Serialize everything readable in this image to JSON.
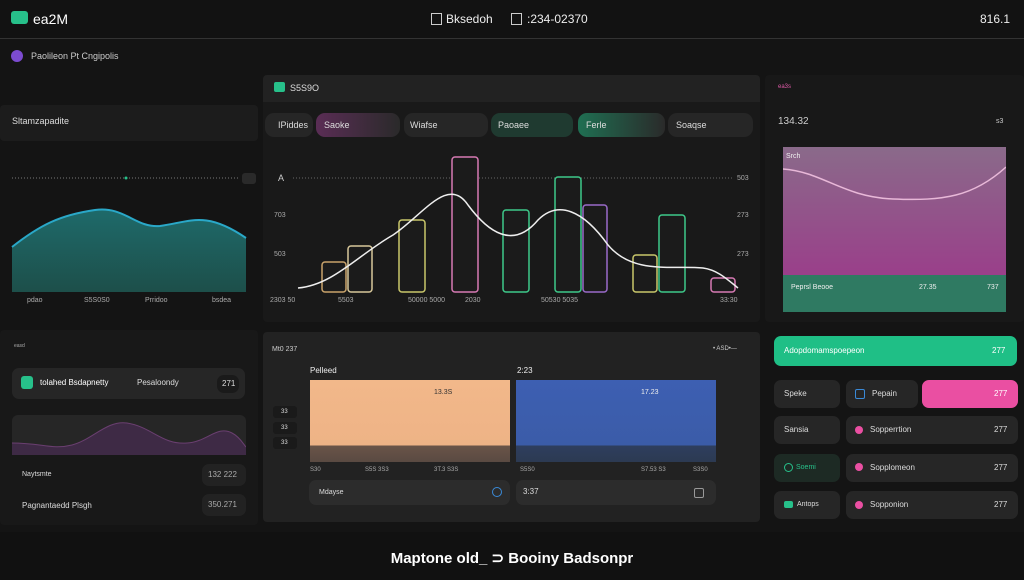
{
  "header": {
    "logo": "ea2M",
    "nav": [
      "Bksedoh",
      ":234-02370"
    ],
    "right": "816.1"
  },
  "profile": "Paolileon Pt Cngipolis",
  "left_panel": {
    "title": "Sltamzapadite",
    "x_labels": [
      "pdao",
      "S5S0S0",
      "Prridoo",
      "bsdea"
    ]
  },
  "main_panel": {
    "title": "S5S9O",
    "tabs": [
      "IPiddes",
      "Saoke",
      "Wiafse",
      "Paoaee",
      "Ferle",
      "Soaqse"
    ],
    "y_left": [
      "A",
      "703",
      "503"
    ],
    "y_right": [
      "503",
      "273",
      "273"
    ],
    "x_labels": [
      "2303 50",
      "5503",
      "50000 5000",
      "2030",
      "50530 5035",
      "33:30"
    ]
  },
  "right_panel": {
    "tag": "ea3s",
    "value": "134.32",
    "unit": "s3",
    "chart_label": "Srch",
    "footer_label": "Peprsl Beooe",
    "footer_value": "27.35",
    "footer_value2": "737"
  },
  "bottom_left": {
    "tag": "easd",
    "card": {
      "label": "tolahed Bsdapnetty",
      "sub": "Pesaloondy",
      "value": "271"
    },
    "rows": [
      {
        "label": "Naytsmte",
        "value": "132 222"
      },
      {
        "label": "Pagnantaedd Plsgh",
        "value": "350.271"
      }
    ]
  },
  "bottom_center": {
    "title": "Mt0 237",
    "legend": "• ASD•—",
    "col1": "Pelleed",
    "col2": "2:23",
    "side": [
      "33",
      "33",
      "33"
    ],
    "bars": [
      "13.3S",
      "17.23"
    ],
    "x_labels": [
      "S30",
      "S5S 3S3",
      "3T.3 S3S",
      "S5S0",
      "S7.53 S3",
      "S3S0"
    ],
    "inputs": [
      "Mdayse",
      "3:37"
    ]
  },
  "bottom_right": {
    "button": {
      "label": "Adopdomamspoepeon",
      "value": "277"
    },
    "rows": [
      {
        "left": "Speke",
        "mid": "Pepain",
        "value": "277"
      },
      {
        "left": "Sansia",
        "mid": "Sopperrtion",
        "value": "277"
      },
      {
        "left": "Soemi",
        "mid": "Sopplomeon",
        "value": "277"
      },
      {
        "left": "Antops",
        "mid": "Sopponion",
        "value": "277"
      }
    ]
  },
  "footer": "Maptone old_ ⊃ Booiny Badsonpr"
}
